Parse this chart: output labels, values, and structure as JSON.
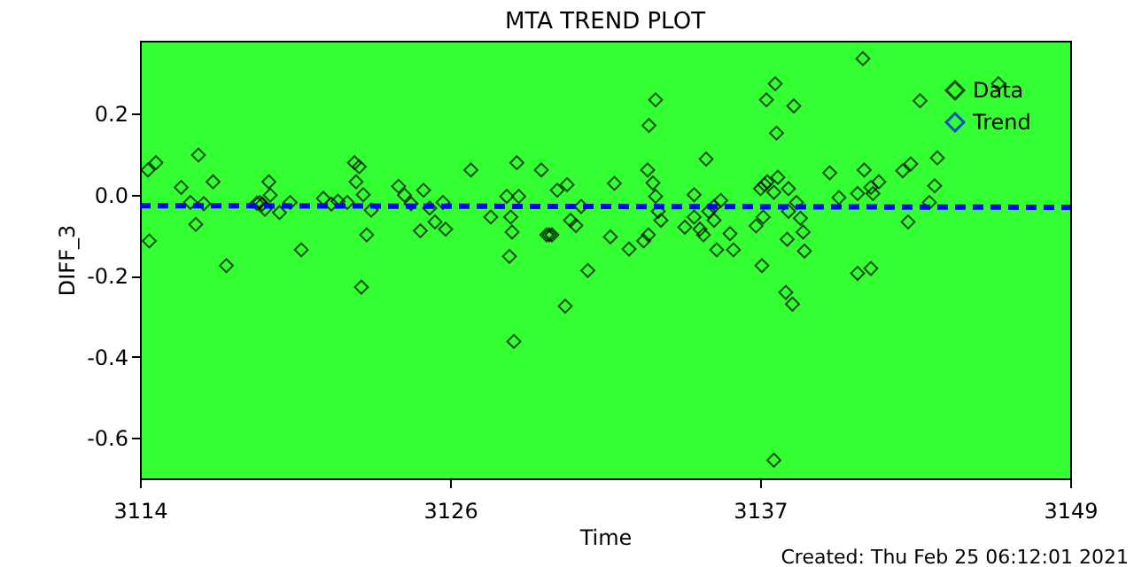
{
  "chart_data": {
    "type": "scatter",
    "title": "MTA TREND PLOT",
    "xlabel": "Time",
    "ylabel": "DIFF_3",
    "annotations": [
      "Created: Thu Feb 25 06:12:01 2021"
    ],
    "xlim": [
      3114,
      3149
    ],
    "xticks": [
      3114,
      {
        "value": 3125.67,
        "label": "3126"
      },
      {
        "value": 3137.33,
        "label": "3137"
      },
      3149
    ],
    "ylim": [
      -0.7,
      0.38
    ],
    "yticks": [
      0.2,
      {
        "value": 0,
        "label": "0.0"
      },
      -0.2,
      -0.4,
      -0.6
    ],
    "grid": false,
    "legend": "top right",
    "marker": "diamond",
    "series": [
      {
        "name": "Data",
        "color": "#000000",
        "x": [
          3114.3,
          3114.6,
          3114.35,
          3115.55,
          3115.9,
          3116.2,
          3116.1,
          3116.4,
          3116.75,
          3117.25,
          3118.4,
          3118.5,
          3118.6,
          3118.85,
          3118.9,
          3118.7,
          3119.25,
          3119.65,
          3120.07,
          3120.9,
          3121.2,
          3121.45,
          3121.8,
          3122.07,
          3122.25,
          3122.13,
          3122.4,
          3122.33,
          3122.53,
          3122.7,
          3123.73,
          3123.95,
          3124.2,
          3124.67,
          3124.55,
          3124.9,
          3125.1,
          3125.4,
          3125.5,
          3126.45,
          3127.2,
          3127.8,
          3128.18,
          3128.25,
          3127.95,
          3128.0,
          3127.9,
          3128.07,
          3129.1,
          3129.3,
          3129.4,
          3129.5,
          3129.7,
          3130.07,
          3130.2,
          3130.4,
          3130.0,
          3130.6,
          3130.85,
          3131.85,
          3131.7,
          3132.4,
          3132.95,
          3133.13,
          3133.1,
          3133.15,
          3133.4,
          3133.3,
          3133.4,
          3133.5,
          3133.6,
          3134.85,
          3135.3,
          3134.5,
          3134.85,
          3135.07,
          3135.2,
          3135.4,
          3135.6,
          3135.85,
          3135.6,
          3135.7,
          3136.2,
          3136.33,
          3137.18,
          3137.45,
          3137.4,
          3137.35,
          3137.5,
          3137.57,
          3137.9,
          3137.95,
          3137.85,
          3138.6,
          3137.6,
          3138.0,
          3137.85,
          3138.4,
          3138.7,
          3138.4,
          3138.85,
          3138.95,
          3138.35,
          3139.0,
          3138.3,
          3138.55,
          3139.95,
          3140.3,
          3141.2,
          3141.0,
          3141.25,
          3141.5,
          3141.8,
          3141.58,
          3141.0,
          3141.5,
          3142.7,
          3143.0,
          3142.9,
          3144.0,
          3143.9,
          3143.7,
          3146.3,
          3143.35
        ],
        "values": [
          0.061,
          0.079,
          -0.114,
          0.018,
          -0.019,
          0.098,
          -0.073,
          -0.022,
          0.032,
          -0.175,
          -0.021,
          -0.019,
          -0.023,
          0.032,
          -0.001,
          -0.036,
          -0.044,
          -0.019,
          -0.136,
          -0.009,
          -0.023,
          -0.016,
          -0.019,
          0.079,
          0.069,
          0.032,
          0.0,
          -0.228,
          -0.099,
          -0.038,
          0.021,
          -0.001,
          -0.022,
          0.011,
          -0.089,
          -0.033,
          -0.067,
          -0.019,
          -0.085,
          0.061,
          -0.055,
          -0.004,
          0.079,
          -0.004,
          -0.055,
          -0.092,
          -0.152,
          -0.362,
          0.061,
          -0.099,
          -0.099,
          -0.099,
          0.011,
          0.025,
          -0.063,
          -0.076,
          -0.275,
          -0.029,
          -0.187,
          0.028,
          -0.104,
          -0.134,
          -0.114,
          -0.099,
          0.061,
          0.171,
          0.234,
          0.029,
          -0.004,
          -0.041,
          -0.063,
          0.0,
          0.088,
          -0.08,
          -0.055,
          -0.085,
          -0.099,
          -0.041,
          -0.029,
          -0.014,
          -0.063,
          -0.136,
          -0.096,
          -0.136,
          -0.077,
          -0.055,
          -0.175,
          0.015,
          0.025,
          0.234,
          0.274,
          0.152,
          -0.655,
          0.219,
          0.032,
          0.043,
          0.006,
          0.015,
          -0.019,
          -0.041,
          -0.058,
          -0.092,
          -0.11,
          -0.139,
          -0.241,
          -0.27,
          0.054,
          -0.007,
          0.336,
          0.003,
          0.061,
          0.018,
          0.032,
          0.003,
          -0.194,
          -0.182,
          0.059,
          0.076,
          -0.067,
          0.091,
          0.022,
          -0.019,
          0.274,
          0.232
        ]
      },
      {
        "name": "Trend",
        "color": "#0000ff",
        "type": "line",
        "line_style": "dashed",
        "marker": "none",
        "x": [
          3114,
          3149
        ],
        "values": [
          -0.027,
          -0.031
        ]
      }
    ]
  }
}
